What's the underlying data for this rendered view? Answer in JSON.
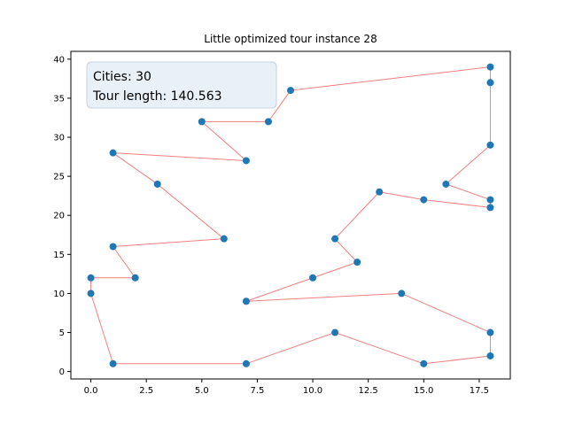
{
  "chart_data": {
    "type": "scatter",
    "title": "Little optimized tour instance 28",
    "xlabel": "",
    "ylabel": "",
    "xlim": [
      -0.9,
      18.9
    ],
    "ylim": [
      -0.95,
      41.0
    ],
    "xticks": [
      0,
      2.5,
      5,
      7.5,
      10,
      12.5,
      15,
      17.5
    ],
    "xtick_labels": [
      "0.0",
      "2.5",
      "5.0",
      "7.5",
      "10.0",
      "12.5",
      "15.0",
      "17.5"
    ],
    "yticks": [
      0,
      5,
      10,
      15,
      20,
      25,
      30,
      35,
      40
    ],
    "ytick_labels": [
      "0",
      "5",
      "10",
      "15",
      "20",
      "25",
      "30",
      "35",
      "40"
    ],
    "grid": false,
    "annotation": {
      "lines": [
        "Cities: 30",
        "Tour length: 140.563"
      ],
      "placement": "top-left"
    },
    "colors": {
      "point": "#1f77b4",
      "tour_line": "#f08080",
      "annotation_bg": "#e8f0f8",
      "annotation_border": "#c5d3e2"
    },
    "tour": [
      [
        9,
        36
      ],
      [
        18,
        39
      ],
      [
        18,
        37
      ],
      [
        18,
        29
      ],
      [
        16,
        24
      ],
      [
        18,
        22
      ],
      [
        18,
        21
      ],
      [
        15,
        22
      ],
      [
        13,
        23
      ],
      [
        11,
        17
      ],
      [
        12,
        14
      ],
      [
        10,
        12
      ],
      [
        7,
        9
      ],
      [
        14,
        10
      ],
      [
        18,
        5
      ],
      [
        18,
        2
      ],
      [
        15,
        1
      ],
      [
        11,
        5
      ],
      [
        7,
        1
      ],
      [
        1,
        1
      ],
      [
        0,
        10
      ],
      [
        0,
        12
      ],
      [
        2,
        12
      ],
      [
        1,
        16
      ],
      [
        6,
        17
      ],
      [
        3,
        24
      ],
      [
        1,
        28
      ],
      [
        7,
        27
      ],
      [
        5,
        32
      ],
      [
        8,
        32
      ]
    ]
  }
}
